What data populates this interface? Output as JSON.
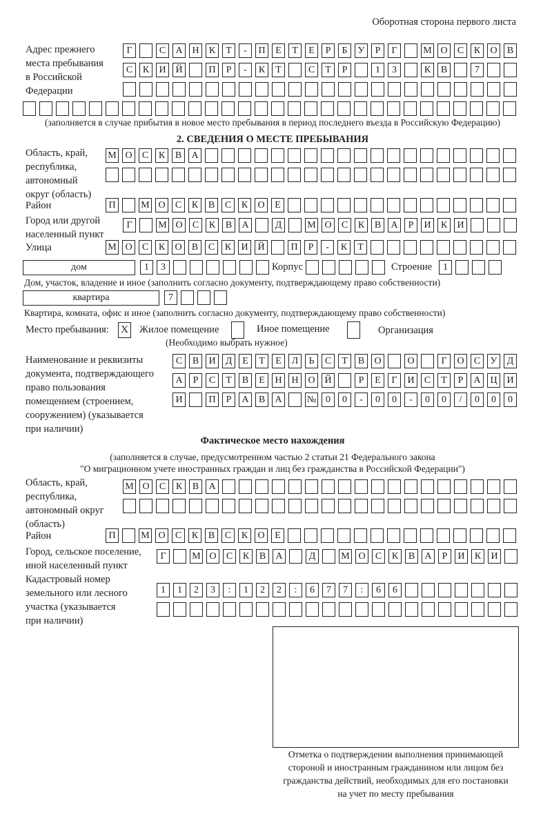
{
  "header": {
    "page_side": "Оборотная сторона первого листа"
  },
  "previous_address": {
    "label": "Адрес прежнего\nместа пребывания\nв Российской\nФедерации",
    "rows": [
      [
        "Г",
        "",
        "С",
        "А",
        "Н",
        "К",
        "Т",
        "-",
        "П",
        "Е",
        "Т",
        "Е",
        "Р",
        "Б",
        "У",
        "Р",
        "Г",
        "",
        "М",
        "О",
        "С",
        "К",
        "О",
        "В"
      ],
      [
        "С",
        "К",
        "И",
        "Й",
        "",
        "П",
        "Р",
        "-",
        "К",
        "Т",
        "",
        "С",
        "Т",
        "Р",
        "",
        "1",
        "3",
        "",
        "К",
        "В",
        "",
        "7"
      ],
      [],
      []
    ],
    "note": "(заполняется в случае прибытия в новое место пребывания в период последнего въезда в Российскую Федерацию)"
  },
  "stay_place": {
    "title": "2. СВЕДЕНИЯ О МЕСТЕ ПРЕБЫВАНИЯ",
    "region_label": "Область, край,\nреспублика,\nавтономный\nокруг (область)",
    "region_rows": [
      [
        "М",
        "О",
        "С",
        "К",
        "В",
        "А"
      ],
      []
    ],
    "district_label": "Район",
    "district": [
      "П",
      "",
      "М",
      "О",
      "С",
      "К",
      "В",
      "С",
      "К",
      "О",
      "Е"
    ],
    "city_label": "Город или другой\nнаселенный пункт",
    "city": [
      "Г",
      "",
      "М",
      "О",
      "С",
      "К",
      "В",
      "А",
      "",
      "Д",
      "",
      "М",
      "О",
      "С",
      "К",
      "В",
      "А",
      "Р",
      "И",
      "К",
      "И"
    ],
    "street_label": "Улица",
    "street": [
      "М",
      "О",
      "С",
      "К",
      "О",
      "В",
      "С",
      "К",
      "И",
      "Й",
      "",
      "П",
      "Р",
      "-",
      "К",
      "Т"
    ],
    "house_type": "дом",
    "house": [
      "1",
      "3"
    ],
    "building_label": "Корпус",
    "building": [],
    "structure_label": "Строение",
    "structure": [
      "1"
    ],
    "house_note": "Дом, участок, владение и иное (заполнить согласно документу, подтверждающему право собственности)",
    "apartment_type": "квартира",
    "apartment": [
      "7"
    ],
    "apartment_note": "Квартира, комната, офис и иное (заполнить согласно документу, подтверждающему право собственности)",
    "place_type_label": "Место пребывания:",
    "place_types": [
      {
        "label": "Жилое помещение",
        "mark": "X",
        "checked": true
      },
      {
        "label": "Иное помещение",
        "mark": "",
        "checked": false
      },
      {
        "label": "Организация",
        "mark": "",
        "checked": false
      }
    ],
    "place_type_hint": "(Необходимо выбрать нужное)",
    "document_label": "Наименование и реквизиты\nдокумента, подтверждающего\nправо пользования\nпомещением (строением,\nсооружением) (указывается\nпри наличии)",
    "document_rows": [
      [
        "С",
        "В",
        "И",
        "Д",
        "Е",
        "Т",
        "Е",
        "Л",
        "Ь",
        "С",
        "Т",
        "В",
        "О",
        "",
        "О",
        "",
        "Г",
        "О",
        "С",
        "У",
        "Д"
      ],
      [
        "А",
        "Р",
        "С",
        "Т",
        "В",
        "Е",
        "Н",
        "Н",
        "О",
        "Й",
        "",
        "Р",
        "Е",
        "Г",
        "И",
        "С",
        "Т",
        "Р",
        "А",
        "Ц",
        "И"
      ],
      [
        "И",
        "",
        "П",
        "Р",
        "А",
        "В",
        "А",
        "",
        "№",
        "0",
        "0",
        "-",
        "0",
        "0",
        "-",
        "0",
        "0",
        "/",
        "0",
        "0",
        "0"
      ]
    ]
  },
  "actual_place": {
    "title": "Фактическое место нахождения",
    "note_line1": "(заполняется в случае, предусмотренном частью 2 статьи 21 Федерального закона",
    "note_line2": "\"О миграционном учете иностранных граждан и лиц без гражданства в Российской Федерации\")",
    "region_label": "Область, край,\nреспублика,\nавтономный округ\n(область)",
    "region_rows": [
      [
        "М",
        "О",
        "С",
        "К",
        "В",
        "А"
      ],
      []
    ],
    "district_label": "Район",
    "district": [
      "П",
      "",
      "М",
      "О",
      "С",
      "К",
      "В",
      "С",
      "К",
      "О",
      "Е"
    ],
    "city_label": "Город, сельское поселение,\nиной населенный пункт",
    "city": [
      "Г",
      "",
      "М",
      "О",
      "С",
      "К",
      "В",
      "А",
      "",
      "Д",
      "",
      "М",
      "О",
      "С",
      "К",
      "В",
      "А",
      "Р",
      "И",
      "К",
      "И"
    ],
    "cadastral_label": "Кадастровый номер\nземельного или лесного\nучастка (указывается\nпри наличии)",
    "cadastral_rows": [
      [
        "1",
        "1",
        "2",
        "3",
        ":",
        "1",
        "2",
        "2",
        ":",
        "6",
        "7",
        "7",
        ":",
        "6",
        "6"
      ],
      []
    ]
  },
  "confirmation": {
    "caption": "Отметка о подтверждении выполнения принимающей\nстороной и иностранным гражданином или лицом без\nгражданства действий, необходимых для его постановки\nна учет по месту пребывания"
  }
}
